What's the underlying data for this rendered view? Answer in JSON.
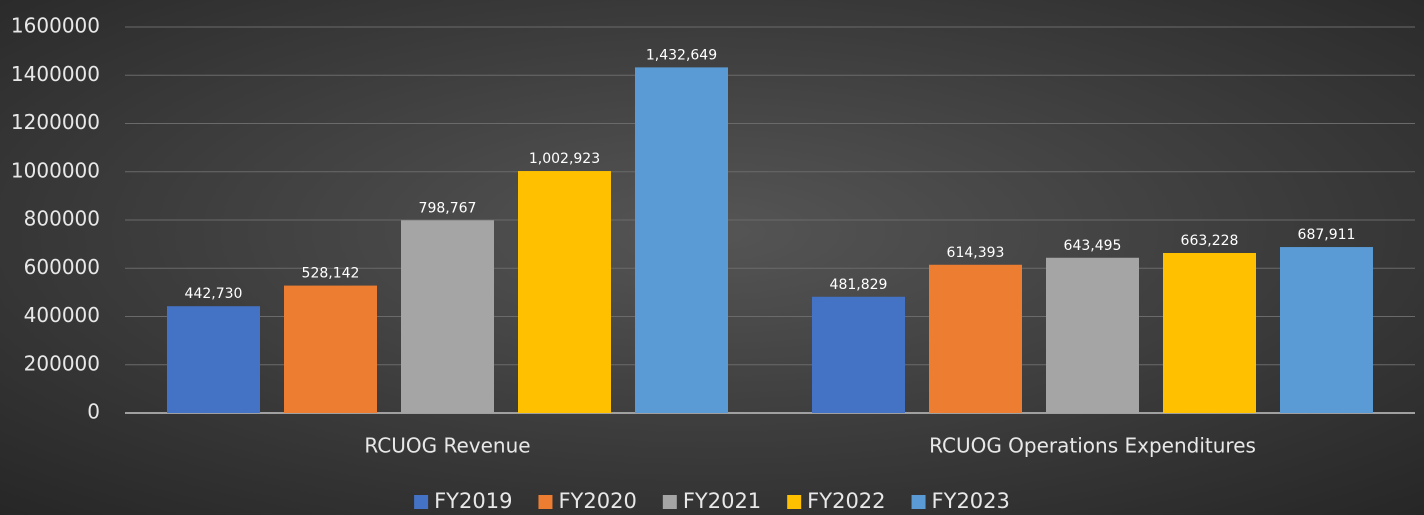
{
  "chart_data": {
    "type": "bar",
    "categories": [
      "RCUOG Revenue",
      "RCUOG Operations Expenditures"
    ],
    "series": [
      {
        "name": "FY2019",
        "color": "#4472c4",
        "values": [
          442730,
          481829
        ],
        "value_labels": [
          "442,730",
          "481,829"
        ]
      },
      {
        "name": "FY2020",
        "color": "#ed7d31",
        "values": [
          528142,
          614393
        ],
        "value_labels": [
          "528,142",
          "614,393"
        ]
      },
      {
        "name": "FY2021",
        "color": "#a5a5a5",
        "values": [
          798767,
          643495
        ],
        "value_labels": [
          "798,767",
          "643,495"
        ]
      },
      {
        "name": "FY2022",
        "color": "#ffc000",
        "values": [
          1002923,
          663228
        ],
        "value_labels": [
          "1,002,923",
          "663,228"
        ]
      },
      {
        "name": "FY2023",
        "color": "#5b9bd5",
        "values": [
          1432649,
          687911
        ],
        "value_labels": [
          "1,432,649",
          "687,911"
        ]
      }
    ],
    "ylim": [
      0,
      1600000
    ],
    "yticks": [
      0,
      200000,
      400000,
      600000,
      800000,
      1000000,
      1200000,
      1400000,
      1600000
    ],
    "grid": true,
    "legend": "bottom"
  }
}
